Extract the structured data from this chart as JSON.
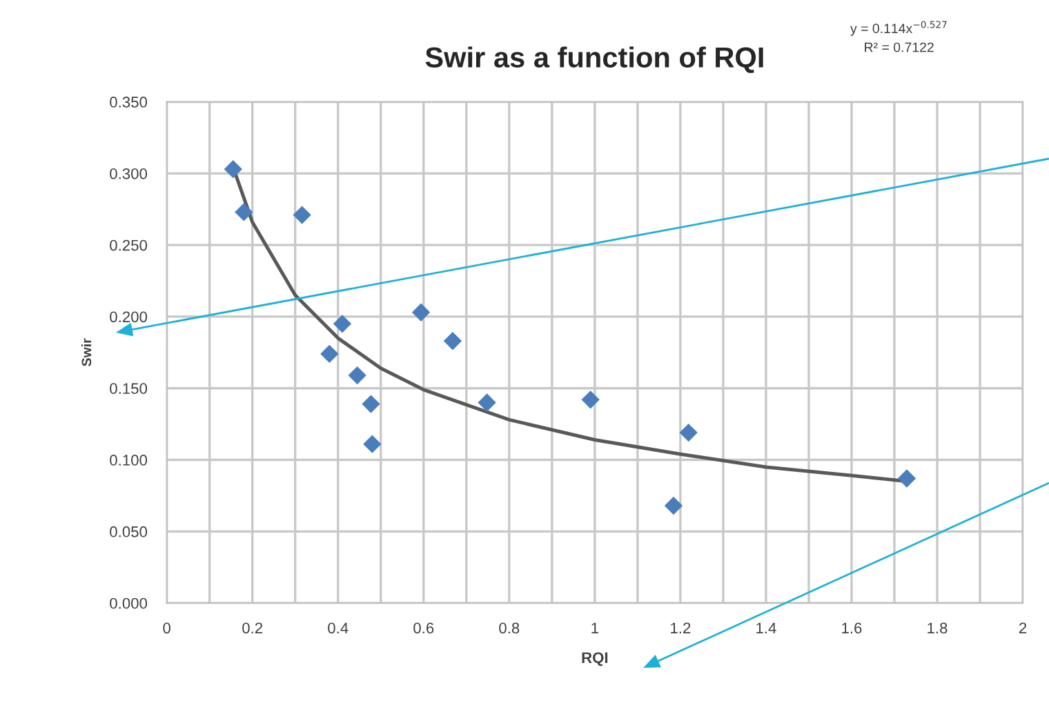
{
  "chart_data": {
    "type": "scatter",
    "title": "Swir as a function of RQI",
    "xlabel": "RQI",
    "ylabel": "Swir",
    "annotations": [
      "y = 0.114x$^{−0.527}$",
      "R² = 0.7122"
    ],
    "series": [
      {
        "type": "scatter",
        "color": "#4a7ebb",
        "marker": "diamond",
        "x": [
          0.155,
          0.18,
          0.316,
          0.41,
          0.38,
          0.445,
          0.477,
          0.48,
          0.594,
          0.668,
          0.748,
          0.99,
          1.219,
          1.184,
          1.729
        ],
        "values": [
          0.303,
          0.273,
          0.271,
          0.195,
          0.174,
          0.159,
          0.139,
          0.111,
          0.203,
          0.183,
          0.14,
          0.142,
          0.119,
          0.068,
          0.087
        ]
      },
      {
        "type": "line",
        "color": "#595959",
        "marker": "none",
        "line_style": "solid",
        "x": [
          0.16,
          0.2,
          0.3,
          0.4,
          0.5,
          0.6,
          0.8,
          1.0,
          1.2,
          1.4,
          1.6,
          1.73
        ],
        "values": [
          0.3,
          0.266,
          0.215,
          0.185,
          0.164,
          0.149,
          0.128,
          0.114,
          0.104,
          0.095,
          0.089,
          0.085
        ]
      }
    ],
    "xlim": [
      0,
      2
    ],
    "xticks": [
      0,
      0.2,
      0.4,
      0.6,
      0.8,
      1,
      1.2,
      1.4,
      1.6,
      1.8,
      2
    ],
    "ylim": [
      0,
      0.35
    ],
    "yticks": [
      {
        "value": 0,
        "label": "0.000"
      },
      {
        "value": 0.05,
        "label": "0.050"
      },
      {
        "value": 0.1,
        "label": "0.100"
      },
      {
        "value": 0.15,
        "label": "0.150"
      },
      {
        "value": 0.2,
        "label": "0.200"
      },
      {
        "value": 0.25,
        "label": "0.250"
      },
      {
        "value": 0.3,
        "label": "0.300"
      },
      {
        "value": 0.35,
        "label": "0.350"
      }
    ],
    "grid": true,
    "legend": false
  }
}
